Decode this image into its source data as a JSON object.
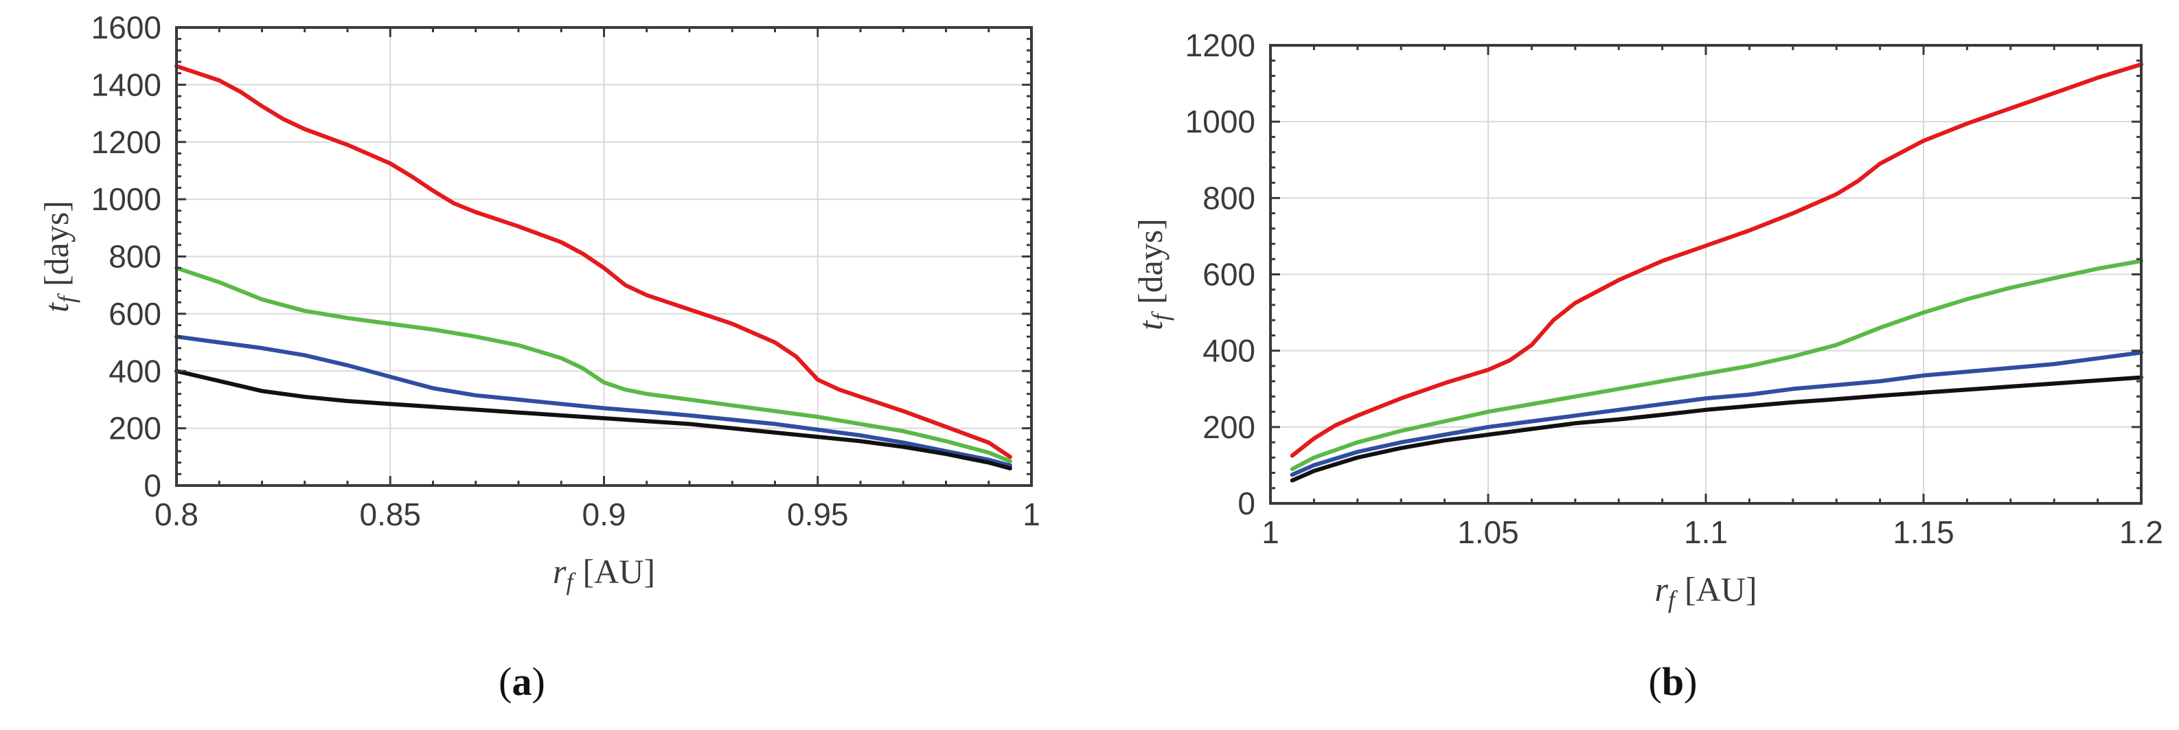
{
  "chart_data": [
    {
      "id": "a",
      "type": "line",
      "panel_label": "a",
      "xlabel": "r",
      "xlabel_sub": "f",
      "xlabel_unit": "[AU]",
      "ylabel": "t",
      "ylabel_sub": "f",
      "ylabel_unit": "[days]",
      "xlim": [
        0.8,
        1.0
      ],
      "ylim": [
        0,
        1600
      ],
      "xticks": [
        0.8,
        0.85,
        0.9,
        0.95,
        1.0
      ],
      "xtick_labels": [
        "0.8",
        "0.85",
        "0.9",
        "0.95",
        "1"
      ],
      "yticks": [
        0,
        200,
        400,
        600,
        800,
        1000,
        1200,
        1400,
        1600
      ],
      "ytick_labels": [
        "0",
        "200",
        "400",
        "600",
        "800",
        "1000",
        "1200",
        "1400",
        "1600"
      ],
      "grid": true,
      "series": [
        {
          "name": "red",
          "color": "#e41a1c",
          "x": [
            0.8,
            0.81,
            0.815,
            0.82,
            0.825,
            0.83,
            0.84,
            0.85,
            0.855,
            0.86,
            0.865,
            0.87,
            0.88,
            0.89,
            0.895,
            0.9,
            0.905,
            0.91,
            0.92,
            0.93,
            0.94,
            0.945,
            0.95,
            0.955,
            0.96,
            0.97,
            0.98,
            0.99,
            0.995
          ],
          "y": [
            1465,
            1415,
            1375,
            1325,
            1280,
            1245,
            1190,
            1125,
            1080,
            1030,
            985,
            955,
            905,
            850,
            810,
            760,
            700,
            665,
            615,
            565,
            500,
            450,
            370,
            335,
            310,
            260,
            205,
            150,
            100
          ]
        },
        {
          "name": "green",
          "color": "#5bb947",
          "x": [
            0.8,
            0.81,
            0.82,
            0.83,
            0.84,
            0.85,
            0.86,
            0.87,
            0.88,
            0.89,
            0.895,
            0.9,
            0.905,
            0.91,
            0.92,
            0.93,
            0.94,
            0.95,
            0.96,
            0.97,
            0.98,
            0.99,
            0.995
          ],
          "y": [
            760,
            710,
            650,
            610,
            585,
            565,
            545,
            520,
            490,
            445,
            410,
            360,
            335,
            320,
            300,
            280,
            260,
            240,
            215,
            190,
            155,
            115,
            85
          ]
        },
        {
          "name": "blue",
          "color": "#2f4ea2",
          "x": [
            0.8,
            0.81,
            0.82,
            0.83,
            0.84,
            0.85,
            0.86,
            0.87,
            0.88,
            0.89,
            0.9,
            0.91,
            0.92,
            0.93,
            0.94,
            0.95,
            0.96,
            0.97,
            0.98,
            0.99,
            0.995
          ],
          "y": [
            520,
            500,
            480,
            455,
            420,
            380,
            340,
            315,
            300,
            285,
            270,
            258,
            245,
            230,
            215,
            195,
            175,
            150,
            120,
            90,
            70
          ]
        },
        {
          "name": "black",
          "color": "#111111",
          "x": [
            0.8,
            0.81,
            0.82,
            0.83,
            0.84,
            0.85,
            0.86,
            0.87,
            0.88,
            0.89,
            0.9,
            0.91,
            0.92,
            0.93,
            0.94,
            0.95,
            0.96,
            0.97,
            0.98,
            0.99,
            0.995
          ],
          "y": [
            400,
            365,
            330,
            310,
            295,
            285,
            275,
            265,
            255,
            245,
            235,
            225,
            215,
            200,
            185,
            170,
            155,
            135,
            110,
            80,
            60
          ]
        }
      ]
    },
    {
      "id": "b",
      "type": "line",
      "panel_label": "b",
      "xlabel": "r",
      "xlabel_sub": "f",
      "xlabel_unit": "[AU]",
      "ylabel": "t",
      "ylabel_sub": "f",
      "ylabel_unit": "[days]",
      "xlim": [
        1.0,
        1.2
      ],
      "ylim": [
        0,
        1200
      ],
      "xticks": [
        1.0,
        1.05,
        1.1,
        1.15,
        1.2
      ],
      "xtick_labels": [
        "1",
        "1.05",
        "1.1",
        "1.15",
        "1.2"
      ],
      "yticks": [
        0,
        200,
        400,
        600,
        800,
        1000,
        1200
      ],
      "ytick_labels": [
        "0",
        "200",
        "400",
        "600",
        "800",
        "1000",
        "1200"
      ],
      "grid": true,
      "series": [
        {
          "name": "red",
          "color": "#e41a1c",
          "x": [
            1.005,
            1.01,
            1.015,
            1.02,
            1.03,
            1.04,
            1.05,
            1.055,
            1.06,
            1.065,
            1.07,
            1.08,
            1.09,
            1.1,
            1.11,
            1.12,
            1.13,
            1.135,
            1.14,
            1.15,
            1.16,
            1.17,
            1.18,
            1.19,
            1.2
          ],
          "y": [
            125,
            170,
            205,
            230,
            275,
            315,
            350,
            375,
            415,
            480,
            525,
            585,
            635,
            675,
            715,
            760,
            810,
            845,
            890,
            950,
            995,
            1035,
            1075,
            1115,
            1150
          ]
        },
        {
          "name": "green",
          "color": "#5bb947",
          "x": [
            1.005,
            1.01,
            1.02,
            1.03,
            1.04,
            1.05,
            1.06,
            1.07,
            1.08,
            1.09,
            1.1,
            1.11,
            1.12,
            1.13,
            1.14,
            1.15,
            1.16,
            1.17,
            1.18,
            1.19,
            1.2
          ],
          "y": [
            90,
            120,
            160,
            190,
            215,
            240,
            260,
            280,
            300,
            320,
            340,
            360,
            385,
            415,
            460,
            500,
            535,
            565,
            590,
            615,
            635
          ]
        },
        {
          "name": "blue",
          "color": "#2f4ea2",
          "x": [
            1.005,
            1.01,
            1.02,
            1.03,
            1.04,
            1.05,
            1.06,
            1.07,
            1.08,
            1.09,
            1.1,
            1.11,
            1.12,
            1.13,
            1.14,
            1.15,
            1.16,
            1.17,
            1.18,
            1.19,
            1.2
          ],
          "y": [
            75,
            100,
            135,
            160,
            180,
            200,
            215,
            230,
            245,
            260,
            275,
            285,
            300,
            310,
            320,
            335,
            345,
            355,
            365,
            380,
            395
          ]
        },
        {
          "name": "black",
          "color": "#111111",
          "x": [
            1.005,
            1.01,
            1.02,
            1.03,
            1.04,
            1.05,
            1.06,
            1.07,
            1.08,
            1.09,
            1.1,
            1.11,
            1.12,
            1.13,
            1.14,
            1.15,
            1.16,
            1.17,
            1.18,
            1.19,
            1.2
          ],
          "y": [
            60,
            85,
            120,
            145,
            165,
            180,
            195,
            210,
            220,
            232,
            245,
            255,
            265,
            273,
            282,
            290,
            298,
            306,
            314,
            322,
            330
          ]
        }
      ]
    }
  ]
}
